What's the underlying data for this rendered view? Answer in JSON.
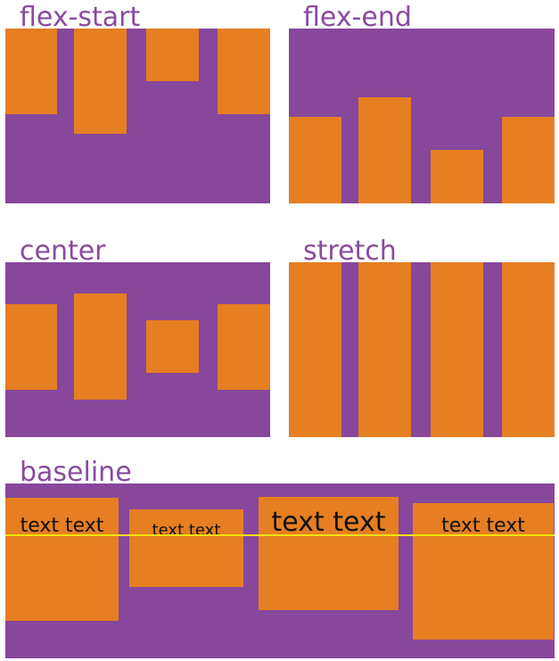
{
  "colors": {
    "container": "#87479b",
    "item": "#e67e22",
    "title": "#8a4a9f",
    "baseline_line": "#f2e300"
  },
  "panels": {
    "flex_start": {
      "title": "flex-start"
    },
    "flex_end": {
      "title": "flex-end"
    },
    "center": {
      "title": "center"
    },
    "stretch": {
      "title": "stretch"
    },
    "baseline": {
      "title": "baseline",
      "item_text": [
        "text text",
        "text text",
        "text text",
        "text text"
      ]
    }
  }
}
